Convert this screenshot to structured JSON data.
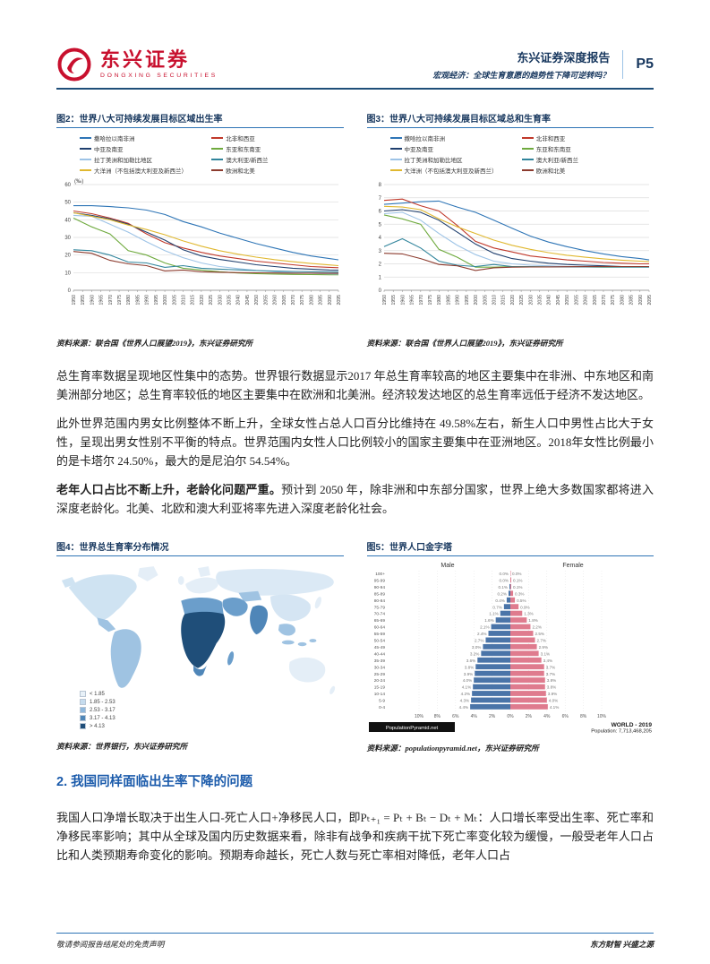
{
  "header": {
    "logo_cn": "东兴证券",
    "logo_en": "DONGXING SECURITIES",
    "report_type": "东兴证券深度报告",
    "report_subtitle": "宏观经济：全球生育意愿的趋势性下降可逆转吗？",
    "page_no": "P5"
  },
  "figure_titles": {
    "fig2": "图2：世界八大可持续发展目标区域出生率",
    "fig3": "图3：世界八大可持续发展目标区域总和生育率",
    "fig4": "图4：世界总生育率分布情况",
    "fig5": "图5：世界人口金字塔"
  },
  "sources": {
    "fig2": "资料来源：联合国《世界人口展望2019》，东兴证券研究所",
    "fig3": "资料来源：联合国《世界人口展望2019》，东兴证券研究所",
    "fig4": "资料来源：世界银行，东兴证券研究所",
    "fig5": "资料来源：populationpyramid.net，东兴证券研究所"
  },
  "paragraphs": {
    "p1": "总生育率数据呈现地区性集中的态势。世界银行数据显示2017 年总生育率较高的地区主要集中在非洲、中东地区和南美洲部分地区；总生育率较低的地区主要集中在欧洲和北美洲。经济较发达地区的总生育率远低于经济不发达地区。",
    "p2": "此外世界范围内男女比例整体不断上升，全球女性占总人口百分比维持在 49.58%左右，新生人口中男性占比大于女性，呈现出男女性别不平衡的特点。世界范围内女性人口比例较小的国家主要集中在亚洲地区。2018年女性比例最小的是卡塔尔 24.50%，最大的是尼泊尔 54.54%。",
    "p3_lead": "老年人口占比不断上升，老龄化问题严重。",
    "p3_rest": "预计到 2050 年，除非洲和中东部分国家，世界上绝大多数国家都将进入深度老龄化。北美、北欧和澳大利亚将率先进入深度老龄化社会。"
  },
  "section2": {
    "heading": "2. 我国同样面临出生率下降的问题",
    "body": "我国人口净增长取决于出生人口-死亡人口+净移民人口，即Pₜ₊₁ = Pₜ + Bₜ − Dₜ + Mₜ：人口增长率受出生率、死亡率和净移民率影响；其中从全球及国内历史数据来看，除非有战争和疾病干扰下死亡率变化较为缓慢，一般受老年人口占比和人类预期寿命变化的影响。预期寿命越长，死亡人数与死亡率相对降低，老年人口占"
  },
  "footer": {
    "left": "敬请参阅报告结尾处的免责声明",
    "right": "东方财智 兴盛之源"
  },
  "chart_data": [
    {
      "id": "fig2",
      "type": "line",
      "title": "世界八大可持续发展目标区域出生率",
      "unit": "(‰)",
      "ylim": [
        0,
        60
      ],
      "y_ticks": [
        0,
        10,
        20,
        30,
        40,
        50,
        60
      ],
      "x_ticks": [
        1950,
        1955,
        1960,
        1965,
        1970,
        1975,
        1980,
        1985,
        1990,
        1995,
        2000,
        2005,
        2010,
        2015,
        2020,
        2025,
        2030,
        2035,
        2040,
        2045,
        2050,
        2055,
        2060,
        2065,
        2070,
        2075,
        2080,
        2085,
        2090,
        2095
      ],
      "x_values": [
        1950,
        1960,
        1970,
        1980,
        1990,
        2000,
        2010,
        2020,
        2030,
        2040,
        2050,
        2060,
        2070,
        2080,
        2090,
        2095
      ],
      "series": [
        {
          "name": "撒哈拉以南非洲",
          "color": "#2e75b6",
          "values": [
            48,
            48,
            47.5,
            46.8,
            45.5,
            43,
            39,
            36,
            32.5,
            29.5,
            26.5,
            24,
            21.5,
            19.5,
            18,
            17.3
          ]
        },
        {
          "name": "北非和西亚",
          "color": "#c0392b",
          "values": [
            45,
            43.5,
            41,
            38,
            32,
            27,
            24,
            21.5,
            19.5,
            18,
            16.5,
            15.5,
            14.5,
            13.5,
            13,
            12.8
          ]
        },
        {
          "name": "中亚及南亚",
          "color": "#1f3f6e",
          "values": [
            44,
            42.5,
            40.5,
            37.5,
            33,
            28.5,
            23,
            19.5,
            17.5,
            16,
            14.5,
            13.5,
            12.5,
            12,
            11.5,
            11.4
          ]
        },
        {
          "name": "东亚和东南亚",
          "color": "#6faa3e",
          "values": [
            41,
            36,
            32,
            22.5,
            20,
            15.5,
            12.5,
            11.5,
            10.5,
            9.8,
            9.4,
            9.2,
            9,
            8.9,
            8.8,
            8.8
          ]
        },
        {
          "name": "拉丁美洲和加勒比地区",
          "color": "#9dc3e6",
          "values": [
            42.5,
            42,
            37.5,
            33,
            27.5,
            22.5,
            18.5,
            15.5,
            13.5,
            12.3,
            11.3,
            10.6,
            10,
            9.6,
            9.3,
            9.2
          ]
        },
        {
          "name": "澳大利亚/新西兰",
          "color": "#31859c",
          "values": [
            23,
            22.5,
            20,
            16,
            15.5,
            13,
            14,
            12.5,
            12,
            11.6,
            11.2,
            10.9,
            10.7,
            10.5,
            10.4,
            10.3
          ]
        },
        {
          "name": "大洋洲（不包括澳大利亚及新西兰）",
          "color": "#e0b830",
          "values": [
            44,
            42,
            40,
            37,
            34.5,
            31.5,
            28,
            25,
            22.5,
            20.5,
            18.8,
            17.4,
            16.2,
            15.2,
            14.4,
            14
          ]
        },
        {
          "name": "欧洲和北美",
          "color": "#8c3b2e",
          "values": [
            22,
            21,
            17,
            15,
            14,
            11,
            11.5,
            10.5,
            10.2,
            10,
            9.9,
            9.8,
            9.7,
            9.7,
            9.6,
            9.6
          ]
        }
      ]
    },
    {
      "id": "fig3",
      "type": "line",
      "title": "世界八大可持续发展目标区域总和生育率",
      "unit": "",
      "ylim": [
        0,
        8
      ],
      "y_ticks": [
        0,
        1,
        2,
        3,
        4,
        5,
        6,
        7,
        8
      ],
      "x_ticks": [
        1950,
        1955,
        1960,
        1965,
        1970,
        1975,
        1980,
        1985,
        1990,
        1995,
        2000,
        2005,
        2010,
        2015,
        2020,
        2025,
        2030,
        2035,
        2040,
        2045,
        2050,
        2055,
        2060,
        2065,
        2070,
        2075,
        2080,
        2085,
        2090,
        2095
      ],
      "x_values": [
        1950,
        1960,
        1970,
        1980,
        1990,
        2000,
        2010,
        2020,
        2030,
        2040,
        2050,
        2060,
        2070,
        2080,
        2090,
        2095
      ],
      "series": [
        {
          "name": "撒哈拉以南非洲",
          "color": "#2e75b6",
          "values": [
            6.5,
            6.6,
            6.7,
            6.75,
            6.3,
            5.9,
            5.3,
            4.7,
            4.1,
            3.65,
            3.3,
            3.0,
            2.75,
            2.55,
            2.4,
            2.3
          ]
        },
        {
          "name": "北非和西亚",
          "color": "#c0392b",
          "values": [
            6.8,
            6.9,
            6.4,
            6.0,
            4.9,
            3.7,
            3.2,
            2.9,
            2.6,
            2.45,
            2.3,
            2.2,
            2.1,
            2.05,
            2.0,
            2.0
          ]
        },
        {
          "name": "中亚及南亚",
          "color": "#1f3f6e",
          "values": [
            6.0,
            6.1,
            5.9,
            5.3,
            4.4,
            3.5,
            2.8,
            2.4,
            2.2,
            2.05,
            1.95,
            1.9,
            1.85,
            1.8,
            1.78,
            1.77
          ]
        },
        {
          "name": "东亚和东南亚",
          "color": "#6faa3e",
          "values": [
            5.7,
            5.4,
            5.0,
            3.1,
            2.5,
            1.75,
            1.75,
            1.8,
            1.78,
            1.77,
            1.76,
            1.76,
            1.75,
            1.75,
            1.75,
            1.75
          ]
        },
        {
          "name": "拉丁美洲和加勒比地区",
          "color": "#9dc3e6",
          "values": [
            5.8,
            5.9,
            5.3,
            4.3,
            3.4,
            2.7,
            2.2,
            2.0,
            1.9,
            1.85,
            1.8,
            1.78,
            1.76,
            1.75,
            1.75,
            1.75
          ]
        },
        {
          "name": "澳大利亚/新西兰",
          "color": "#31859c",
          "values": [
            3.3,
            3.9,
            3.2,
            2.2,
            1.9,
            1.8,
            1.95,
            1.8,
            1.78,
            1.77,
            1.76,
            1.76,
            1.76,
            1.76,
            1.76,
            1.76
          ]
        },
        {
          "name": "大洋洲（不包括澳大利亚及新西兰）",
          "color": "#e0b830",
          "values": [
            6.35,
            6.3,
            6.1,
            5.4,
            4.8,
            4.3,
            3.8,
            3.4,
            3.1,
            2.85,
            2.65,
            2.5,
            2.38,
            2.28,
            2.2,
            2.16
          ]
        },
        {
          "name": "欧洲和北美",
          "color": "#8c3b2e",
          "values": [
            2.8,
            2.75,
            2.4,
            1.95,
            1.85,
            1.5,
            1.7,
            1.75,
            1.76,
            1.77,
            1.78,
            1.79,
            1.8,
            1.8,
            1.8,
            1.8
          ]
        }
      ]
    },
    {
      "id": "fig4",
      "type": "choropleth",
      "title": "世界总生育率分布情况",
      "legend": [
        {
          "label": "< 1.85",
          "color": "#e8f1f8"
        },
        {
          "label": "1.85 - 2.53",
          "color": "#c6dcee"
        },
        {
          "label": "2.53 - 3.17",
          "color": "#8fb8dc"
        },
        {
          "label": "3.17 - 4.13",
          "color": "#4f86b8"
        },
        {
          "label": "> 4.13",
          "color": "#1f4e79"
        }
      ]
    },
    {
      "id": "fig5",
      "type": "population-pyramid",
      "title": "世界人口金字塔",
      "male_label": "Male",
      "female_label": "Female",
      "male_color": "#4a74a8",
      "female_color": "#df7b8e",
      "age_groups": [
        "100+",
        "95-99",
        "90-94",
        "85-89",
        "80-84",
        "75-79",
        "70-74",
        "65-69",
        "60-64",
        "55-59",
        "50-54",
        "45-49",
        "40-44",
        "35-39",
        "30-34",
        "25-29",
        "20-24",
        "15-19",
        "10-14",
        "5-9",
        "0-4"
      ],
      "male_pct": [
        0.0,
        0.0,
        0.1,
        0.2,
        0.4,
        0.7,
        1.1,
        1.6,
        2.1,
        2.4,
        2.7,
        3.0,
        3.2,
        3.6,
        3.8,
        3.9,
        4.0,
        4.1,
        4.2,
        4.3,
        4.4
      ],
      "female_pct": [
        0.0,
        0.1,
        0.1,
        0.3,
        0.5,
        0.9,
        1.3,
        1.8,
        2.2,
        2.5,
        2.7,
        2.9,
        3.1,
        3.4,
        3.7,
        3.7,
        3.8,
        3.8,
        3.9,
        4.0,
        4.1
      ],
      "x_ticks": [
        "10%",
        "8%",
        "6%",
        "4%",
        "2%",
        "0%",
        "2%",
        "4%",
        "6%",
        "8%",
        "10%"
      ],
      "watermark": "PopulationPyramid.net",
      "region_label": "WORLD - 2019",
      "population_label": "Population: 7,713,468,205"
    }
  ]
}
